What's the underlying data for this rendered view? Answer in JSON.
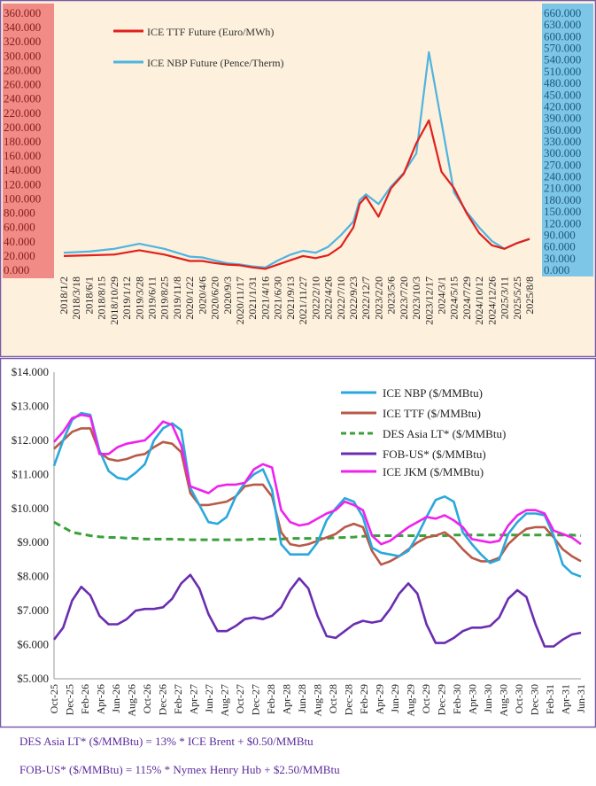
{
  "chart_data": [
    {
      "type": "line",
      "title": "",
      "legend_placement": "top-left",
      "grid": false,
      "y_left": {
        "ylim": [
          0,
          360
        ],
        "ticks": [
          "0.000",
          "20.000",
          "40.000",
          "60.000",
          "80.000",
          "100.000",
          "120.000",
          "140.000",
          "160.000",
          "180.000",
          "200.000",
          "220.000",
          "240.000",
          "260.000",
          "280.000",
          "300.000",
          "320.000",
          "340.000",
          "360.000"
        ]
      },
      "y_right": {
        "ylim": [
          0,
          660
        ],
        "ticks": [
          "0.000",
          "30.000",
          "60.000",
          "90.000",
          "120.000",
          "150.000",
          "180.000",
          "210.000",
          "240.000",
          "270.000",
          "300.000",
          "330.000",
          "360.000",
          "390.000",
          "420.000",
          "450.000",
          "480.000",
          "510.000",
          "540.000",
          "570.000",
          "600.000",
          "630.000",
          "660.000"
        ]
      },
      "x_tick_labels": [
        "2018/1/2",
        "2018/3/18",
        "2018/6/1",
        "2018/8/15",
        "2018/10/29",
        "2019/1/12",
        "2019/3/28",
        "2019/6/11",
        "2019/8/25",
        "2019/11/8",
        "2020/1/22",
        "2020/4/6",
        "2020/6/20",
        "2020/9/3",
        "2020/11/17",
        "2021/1/31",
        "2021/4/16",
        "2021/6/30",
        "2021/9/13",
        "2021/11/27",
        "2022/2/10",
        "2022/4/26",
        "2022/7/10",
        "2022/9/23",
        "2022/12/7",
        "2023/2/20",
        "2023/5/6",
        "2023/7/20",
        "2023/10/3",
        "2023/12/17",
        "2024/3/1",
        "2024/5/15",
        "2024/7/29",
        "2024/10/12",
        "2024/12/26",
        "2025/3/11",
        "2025/5/25",
        "2025/8/8"
      ],
      "series": [
        {
          "name": "ICE  TTF Future (Euro/MWh)",
          "color": "#e0201c",
          "axis": "left",
          "x": [
            0,
            2,
            4,
            6,
            8,
            10,
            11,
            12,
            13,
            14,
            15,
            16,
            17,
            18,
            19,
            20,
            21,
            22,
            23,
            23.5,
            24,
            25,
            26,
            27,
            28,
            29,
            30,
            31,
            32,
            33,
            34,
            35,
            36,
            37
          ],
          "values": [
            20,
            21,
            22,
            28,
            22,
            13,
            13,
            10,
            8,
            7,
            4,
            2,
            8,
            14,
            20,
            17,
            21,
            33,
            60,
            93,
            103,
            75,
            115,
            135,
            178,
            210,
            138,
            115,
            80,
            52,
            35,
            30,
            38,
            44
          ]
        },
        {
          "name": "ICE NBP Future (Pence/Therm)",
          "color": "#4fb4e0",
          "axis": "right",
          "x": [
            0,
            2,
            4,
            6,
            8,
            10,
            11,
            12,
            13,
            14,
            15,
            16,
            17,
            18,
            19,
            20,
            21,
            22,
            23,
            23.5,
            24,
            25,
            26,
            27,
            28,
            29,
            30,
            31,
            32,
            33,
            34,
            35,
            36,
            37
          ],
          "values": [
            45,
            48,
            55,
            68,
            55,
            35,
            33,
            25,
            18,
            15,
            10,
            7,
            25,
            40,
            50,
            45,
            60,
            90,
            125,
            180,
            195,
            170,
            215,
            250,
            300,
            560,
            380,
            200,
            150,
            110,
            75,
            55,
            70,
            80
          ]
        }
      ]
    },
    {
      "type": "line",
      "title": "",
      "legend_placement": "top-right",
      "grid": false,
      "ylim": [
        5,
        14
      ],
      "y_tick_labels": [
        "$5.000",
        "$6.000",
        "$7.000",
        "$8.000",
        "$9.000",
        "$10.000",
        "$11.000",
        "$12.000",
        "$13.000",
        "$14.000"
      ],
      "x_tick_labels": [
        "Oct-25",
        "Dec-25",
        "Feb-26",
        "Apr-26",
        "Jun-26",
        "Aug-26",
        "Oct-26",
        "Dec-26",
        "Feb-27",
        "Apr-27",
        "Jun-27",
        "Aug-27",
        "Oct-27",
        "Dec-27",
        "Feb-28",
        "Apr-28",
        "Jun-28",
        "Aug-28",
        "Oct-28",
        "Dec-28",
        "Feb-29",
        "Apr-29",
        "Jun-29",
        "Aug-29",
        "Oct-29",
        "Dec-29",
        "Feb-30",
        "Apr-30",
        "Jun-30",
        "Aug-30",
        "Oct-30",
        "Dec-30",
        "Feb-31",
        "Apr-31",
        "Jun-31"
      ],
      "series": [
        {
          "name": "ICE NBP ($/MMBtu)",
          "color": "#2aa8dc",
          "dash": "",
          "values": [
            11.25,
            12.0,
            12.6,
            12.8,
            12.75,
            11.7,
            11.1,
            10.9,
            10.85,
            11.05,
            11.3,
            12.0,
            12.35,
            12.5,
            12.3,
            10.6,
            10.1,
            9.6,
            9.55,
            9.75,
            10.35,
            10.75,
            11.0,
            11.15,
            10.55,
            8.95,
            8.65,
            8.65,
            8.65,
            9.0,
            9.65,
            10.0,
            10.3,
            10.2,
            9.75,
            8.85,
            8.7,
            8.65,
            8.6,
            8.75,
            9.2,
            9.75,
            10.25,
            10.35,
            10.2,
            9.3,
            8.95,
            8.65,
            8.4,
            8.5,
            9.25,
            9.6,
            9.85,
            9.85,
            9.8,
            9.2,
            8.35,
            8.1,
            8.0
          ]
        },
        {
          "name": "ICE TTF ($/MMBtu)",
          "color": "#b85a48",
          "dash": "",
          "values": [
            11.75,
            12.0,
            12.25,
            12.35,
            12.35,
            11.65,
            11.45,
            11.4,
            11.45,
            11.55,
            11.6,
            11.8,
            11.95,
            11.9,
            11.65,
            10.45,
            10.1,
            10.1,
            10.15,
            10.2,
            10.35,
            10.65,
            10.7,
            10.7,
            10.35,
            9.3,
            8.95,
            8.9,
            8.95,
            9.05,
            9.15,
            9.25,
            9.45,
            9.55,
            9.45,
            8.75,
            8.35,
            8.45,
            8.6,
            8.8,
            9.0,
            9.15,
            9.2,
            9.3,
            9.1,
            8.8,
            8.55,
            8.45,
            8.45,
            8.55,
            8.95,
            9.2,
            9.4,
            9.45,
            9.45,
            9.15,
            8.8,
            8.6,
            8.45
          ]
        },
        {
          "name": "DES Asia LT* ($/MMBtu)",
          "color": "#3aa03a",
          "dash": "8,5",
          "values": [
            9.6,
            9.45,
            9.3,
            9.25,
            9.2,
            9.17,
            9.15,
            9.15,
            9.13,
            9.12,
            9.1,
            9.1,
            9.1,
            9.1,
            9.09,
            9.08,
            9.08,
            9.08,
            9.08,
            9.08,
            9.08,
            9.08,
            9.1,
            9.1,
            9.1,
            9.1,
            9.12,
            9.12,
            9.12,
            9.12,
            9.12,
            9.14,
            9.15,
            9.16,
            9.18,
            9.2,
            9.2,
            9.2,
            9.2,
            9.2,
            9.2,
            9.2,
            9.2,
            9.2,
            9.22,
            9.22,
            9.22,
            9.22,
            9.22,
            9.22,
            9.22,
            9.22,
            9.22,
            9.22,
            9.22,
            9.22,
            9.22,
            9.22,
            9.2
          ]
        },
        {
          "name": "FOB-US* ($/MMBtu)",
          "color": "#6a2db0",
          "dash": "",
          "values": [
            6.15,
            6.5,
            7.3,
            7.7,
            7.45,
            6.85,
            6.6,
            6.6,
            6.75,
            7.0,
            7.05,
            7.05,
            7.1,
            7.35,
            7.8,
            8.05,
            7.65,
            6.9,
            6.4,
            6.4,
            6.55,
            6.75,
            6.8,
            6.75,
            6.85,
            7.1,
            7.6,
            7.95,
            7.65,
            6.85,
            6.25,
            6.2,
            6.4,
            6.6,
            6.7,
            6.65,
            6.7,
            7.05,
            7.5,
            7.8,
            7.5,
            6.6,
            6.05,
            6.05,
            6.2,
            6.4,
            6.5,
            6.5,
            6.55,
            6.8,
            7.35,
            7.6,
            7.4,
            6.6,
            5.95,
            5.95,
            6.15,
            6.3,
            6.35
          ]
        },
        {
          "name": "ICE JKM ($/MMBtu)",
          "color": "#ee22ee",
          "dash": "",
          "values": [
            11.95,
            12.25,
            12.65,
            12.75,
            12.7,
            11.6,
            11.6,
            11.8,
            11.9,
            11.95,
            12.0,
            12.25,
            12.55,
            12.45,
            11.85,
            10.65,
            10.55,
            10.45,
            10.65,
            10.7,
            10.7,
            10.75,
            11.15,
            11.3,
            11.2,
            9.95,
            9.6,
            9.5,
            9.55,
            9.7,
            9.85,
            9.95,
            10.2,
            10.1,
            9.95,
            9.2,
            8.95,
            9.05,
            9.25,
            9.45,
            9.6,
            9.75,
            9.7,
            9.8,
            9.65,
            9.45,
            9.1,
            9.05,
            9.0,
            9.05,
            9.5,
            9.8,
            9.95,
            9.95,
            9.85,
            9.35,
            9.25,
            9.15,
            8.95
          ]
        }
      ]
    }
  ],
  "notes": {
    "line1": "DES Asia LT* ($/MMBtu) = 13% * ICE Brent + $0.50/MMBtu",
    "line2": "FOB-US* ($/MMBtu) = 115% * Nymex Henry Hub + $2.50/MMBtu"
  }
}
